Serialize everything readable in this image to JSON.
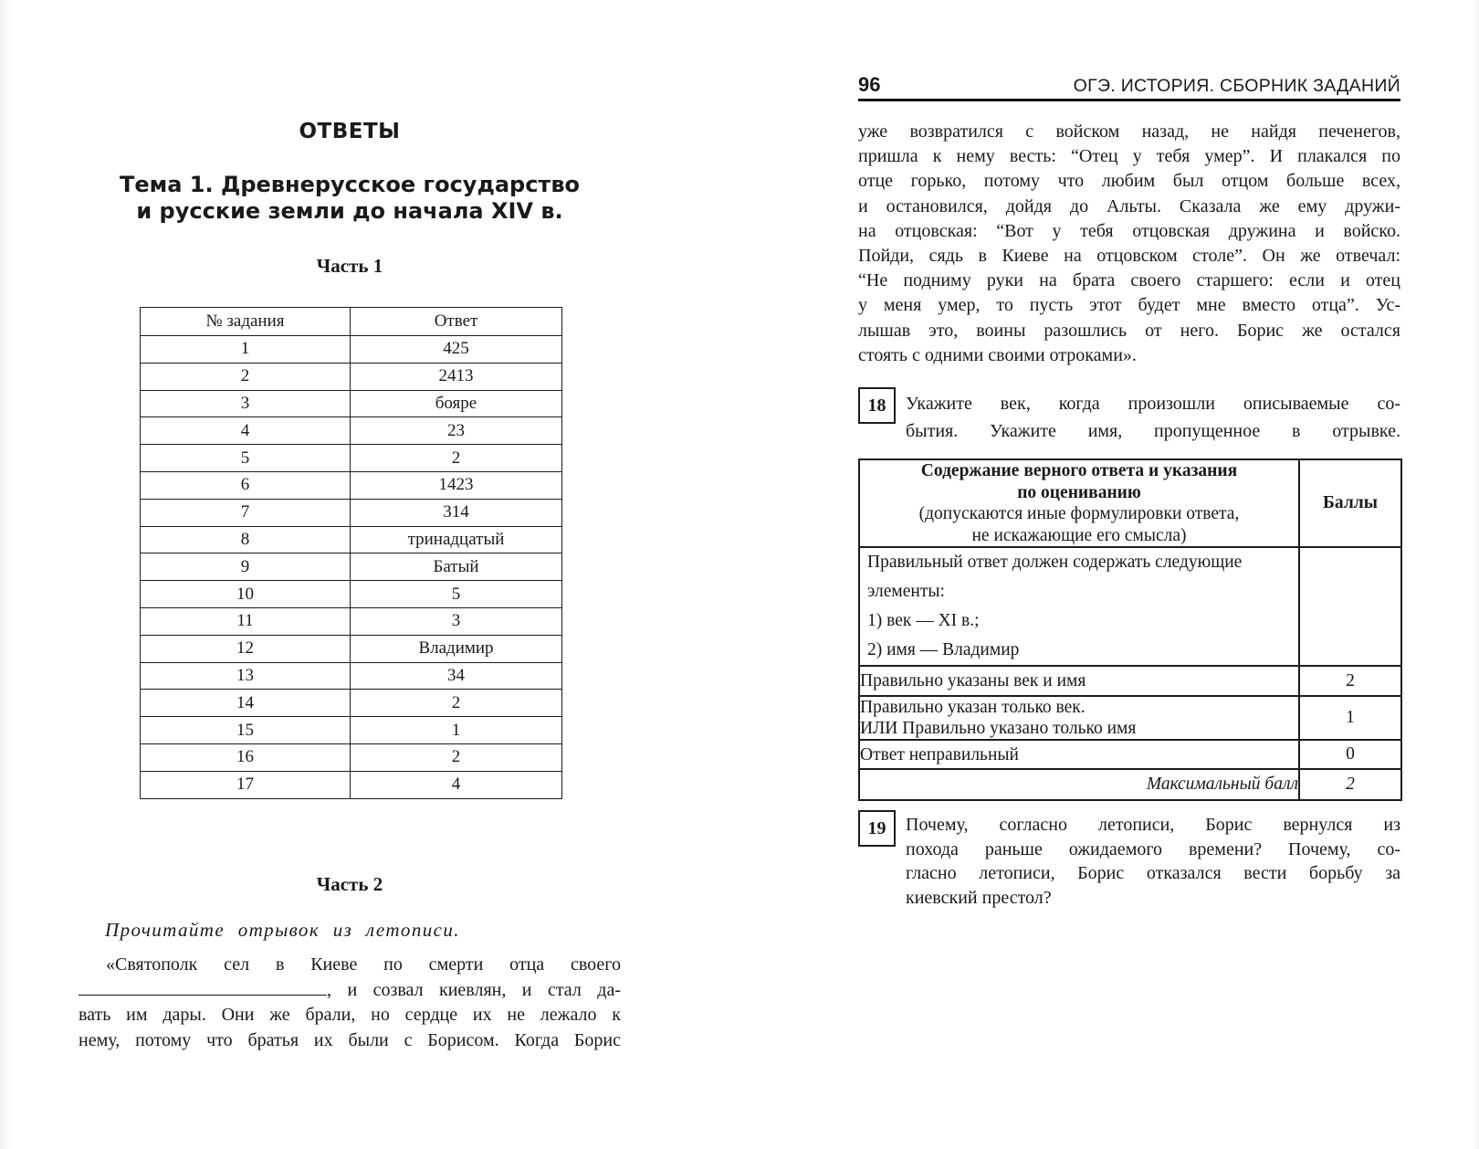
{
  "left_page": {
    "title": "ОТВЕТЫ",
    "topic_line1": "Тема 1. Древнерусское государство",
    "topic_line2": "и русские земли до начала XIV в.",
    "part1_heading": "Часть 1",
    "answers_table": {
      "col1": "№ задания",
      "col2": "Ответ",
      "rows": [
        [
          "1",
          "425"
        ],
        [
          "2",
          "2413"
        ],
        [
          "3",
          "бояре"
        ],
        [
          "4",
          "23"
        ],
        [
          "5",
          "2"
        ],
        [
          "6",
          "1423"
        ],
        [
          "7",
          "314"
        ],
        [
          "8",
          "тринадцатый"
        ],
        [
          "9",
          "Батый"
        ],
        [
          "10",
          "5"
        ],
        [
          "11",
          "3"
        ],
        [
          "12",
          "Владимир"
        ],
        [
          "13",
          "34"
        ],
        [
          "14",
          "2"
        ],
        [
          "15",
          "1"
        ],
        [
          "16",
          "2"
        ],
        [
          "17",
          "4"
        ]
      ]
    },
    "part2_heading": "Часть 2",
    "instruction": "Прочитайте отрывок из летописи.",
    "excerpt": {
      "line1": "«Святополк сел в Киеве по смерти отца своего",
      "line2_after_blank": ", и созвал киевлян, и стал да-",
      "line3": "вать им дары. Они же брали, но сердце их не лежало к",
      "line4": "нему, потому что братья их были с Борисом. Когда Борис"
    }
  },
  "right_page": {
    "page_number": "96",
    "running_title": "ОГЭ. ИСТОРИЯ. СБОРНИК ЗАДАНИЙ",
    "excerpt_lines": [
      "уже возвратился с войском назад, не найдя печенегов,",
      "пришла к нему весть: “Отец у тебя умер”. И плакался по",
      "отце горько, потому что любим был отцом больше всех,",
      "и остановился, дойдя до Альты. Сказала же ему дружи-",
      "на отцовская: “Вот у тебя отцовская дружина и войско.",
      "Пойди, сядь в Киеве на отцовском столе”. Он же отвечал:",
      "“Не подниму руки на брата своего старшего: если и отец",
      "у меня умер, то пусть этот будет мне вместо отца”. Ус-",
      "лышав это, воины разошлись от него. Борис же остался",
      "стоять с одними своими отроками»."
    ],
    "task18": {
      "number": "18",
      "line1": "Укажите век, когда произошли описываемые со-",
      "line2": "бытия. Укажите имя, пропущенное в отрывке."
    },
    "scoring_table": {
      "header_line1": "Содержание верного ответа и указания",
      "header_line2": "по оцениванию",
      "header_line3": "(допускаются иные формулировки ответа,",
      "header_line4": "не искажающие его смысла)",
      "points_header": "Баллы",
      "criteria_line1": "Правильный ответ должен содержать следующие",
      "criteria_line2": "элементы:",
      "criteria_line3": "1) век — XI в.;",
      "criteria_line4": "2) имя — Владимир",
      "rows": [
        {
          "text": "Правильно указаны век и имя",
          "points": "2"
        },
        {
          "line1": "Правильно указан только век.",
          "line2": "ИЛИ Правильно указано только имя",
          "points": "1"
        },
        {
          "text": "Ответ неправильный",
          "points": "0"
        }
      ],
      "max_label": "Максимальный балл",
      "max_points": "2"
    },
    "task19": {
      "number": "19",
      "line1": "Почему, согласно летописи, Борис вернулся из",
      "line2": "похода раньше ожидаемого времени? Почему, со-",
      "line3": "гласно летописи, Борис отказался вести борьбу за",
      "line4": "киевский престол?"
    }
  }
}
